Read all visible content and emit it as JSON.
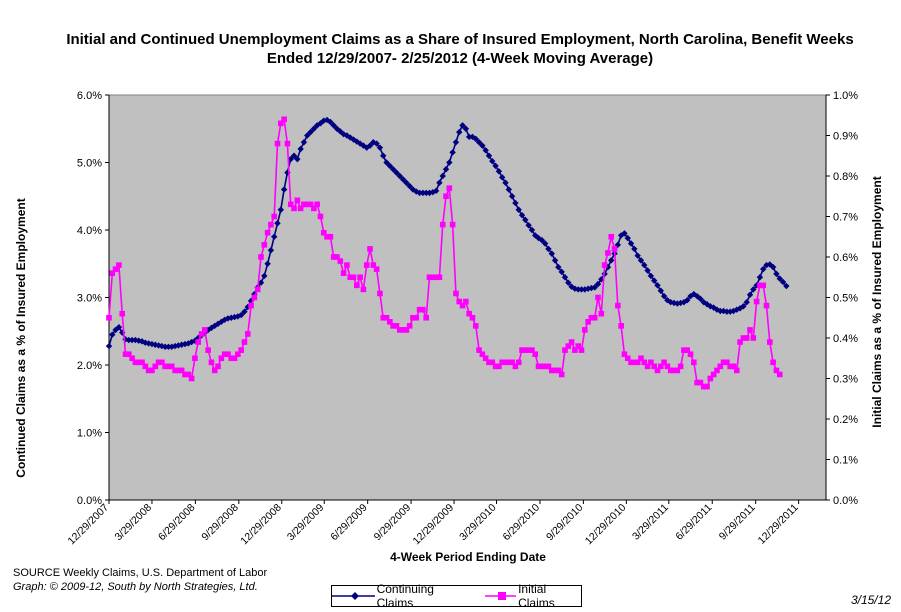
{
  "chart_data": {
    "type": "line",
    "title": "Initial and Continued Unemployment Claims as a Share of Insured Employment, North Carolina, Benefit Weeks Ended 12/29/2007- 2/25/2012 (4-Week Moving Average)",
    "xlabel": "4-Week Period Ending Date",
    "ylabel_left": "Continued Claims as a % of Insured Employment",
    "ylabel_right": "Initial Claims as a % of Insured Employment",
    "ylim_left": [
      0,
      6
    ],
    "ylim_right": [
      0,
      1
    ],
    "y_ticks_left": [
      "0.0%",
      "1.0%",
      "2.0%",
      "3.0%",
      "4.0%",
      "5.0%",
      "6.0%"
    ],
    "y_ticks_right": [
      "0.0%",
      "0.1%",
      "0.2%",
      "0.3%",
      "0.4%",
      "0.5%",
      "0.6%",
      "0.7%",
      "0.8%",
      "0.9%",
      "1.0%"
    ],
    "x_ticks": [
      "12/29/2007",
      "3/29/2008",
      "6/29/2008",
      "9/29/2008",
      "12/29/2008",
      "3/29/2009",
      "6/29/2009",
      "9/29/2009",
      "12/29/2009",
      "3/29/2010",
      "6/29/2010",
      "9/29/2010",
      "12/29/2010",
      "3/29/2011",
      "6/29/2011",
      "9/29/2011",
      "12/29/2011"
    ],
    "x_start": "12/29/2007",
    "x_end": "2/25/2012",
    "grid": false,
    "background": "#C0C0C0",
    "series": [
      {
        "name": "Continuing Claims",
        "axis": "left",
        "color": "#000080",
        "marker": "diamond",
        "values": [
          2.28,
          2.45,
          2.52,
          2.56,
          2.48,
          2.38,
          2.37,
          2.37,
          2.37,
          2.36,
          2.35,
          2.33,
          2.32,
          2.31,
          2.3,
          2.29,
          2.28,
          2.27,
          2.27,
          2.27,
          2.28,
          2.29,
          2.3,
          2.31,
          2.32,
          2.34,
          2.36,
          2.4,
          2.44,
          2.48,
          2.52,
          2.55,
          2.58,
          2.61,
          2.64,
          2.67,
          2.69,
          2.7,
          2.71,
          2.72,
          2.74,
          2.79,
          2.86,
          2.95,
          3.05,
          3.15,
          3.22,
          3.32,
          3.5,
          3.7,
          3.9,
          4.1,
          4.3,
          4.6,
          4.85,
          5.05,
          5.1,
          5.05,
          5.2,
          5.3,
          5.4,
          5.45,
          5.5,
          5.55,
          5.58,
          5.62,
          5.63,
          5.6,
          5.55,
          5.5,
          5.46,
          5.42,
          5.4,
          5.37,
          5.34,
          5.31,
          5.28,
          5.25,
          5.22,
          5.25,
          5.3,
          5.28,
          5.22,
          5.1,
          5.0,
          4.95,
          4.9,
          4.85,
          4.8,
          4.75,
          4.7,
          4.65,
          4.6,
          4.57,
          4.55,
          4.55,
          4.55,
          4.55,
          4.56,
          4.58,
          4.7,
          4.8,
          4.9,
          5.0,
          5.15,
          5.3,
          5.45,
          5.55,
          5.5,
          5.38,
          5.38,
          5.35,
          5.3,
          5.25,
          5.18,
          5.1,
          5.02,
          4.95,
          4.87,
          4.78,
          4.7,
          4.6,
          4.5,
          4.4,
          4.3,
          4.22,
          4.15,
          4.07,
          4.0,
          3.92,
          3.88,
          3.85,
          3.8,
          3.72,
          3.65,
          3.55,
          3.45,
          3.38,
          3.3,
          3.22,
          3.16,
          3.13,
          3.12,
          3.12,
          3.12,
          3.13,
          3.14,
          3.15,
          3.2,
          3.27,
          3.35,
          3.45,
          3.55,
          3.65,
          3.78,
          3.92,
          3.95,
          3.88,
          3.8,
          3.72,
          3.62,
          3.55,
          3.48,
          3.4,
          3.32,
          3.25,
          3.18,
          3.1,
          3.02,
          2.96,
          2.93,
          2.92,
          2.91,
          2.92,
          2.93,
          2.96,
          3.02,
          3.05,
          3.02,
          2.98,
          2.93,
          2.9,
          2.87,
          2.85,
          2.82,
          2.8,
          2.8,
          2.79,
          2.79,
          2.8,
          2.82,
          2.84,
          2.87,
          2.93,
          3.04,
          3.12,
          3.18,
          3.3,
          3.42,
          3.48,
          3.49,
          3.45,
          3.35,
          3.28,
          3.23,
          3.17
        ]
      },
      {
        "name": "Initial Claims",
        "axis": "right",
        "color": "#FF00FF",
        "marker": "square",
        "values": [
          0.45,
          0.56,
          0.57,
          0.58,
          0.46,
          0.36,
          0.36,
          0.35,
          0.34,
          0.34,
          0.34,
          0.33,
          0.32,
          0.32,
          0.33,
          0.34,
          0.34,
          0.33,
          0.33,
          0.33,
          0.32,
          0.32,
          0.32,
          0.31,
          0.31,
          0.3,
          0.35,
          0.39,
          0.41,
          0.42,
          0.37,
          0.34,
          0.32,
          0.33,
          0.35,
          0.36,
          0.36,
          0.35,
          0.35,
          0.36,
          0.37,
          0.39,
          0.41,
          0.48,
          0.5,
          0.52,
          0.6,
          0.63,
          0.66,
          0.68,
          0.7,
          0.88,
          0.93,
          0.94,
          0.88,
          0.73,
          0.72,
          0.74,
          0.72,
          0.73,
          0.73,
          0.73,
          0.72,
          0.73,
          0.7,
          0.66,
          0.65,
          0.65,
          0.6,
          0.6,
          0.59,
          0.56,
          0.58,
          0.55,
          0.55,
          0.53,
          0.55,
          0.52,
          0.58,
          0.62,
          0.58,
          0.57,
          0.51,
          0.45,
          0.45,
          0.44,
          0.43,
          0.43,
          0.42,
          0.42,
          0.42,
          0.43,
          0.45,
          0.45,
          0.47,
          0.47,
          0.45,
          0.55,
          0.55,
          0.55,
          0.55,
          0.68,
          0.75,
          0.77,
          0.68,
          0.51,
          0.49,
          0.48,
          0.49,
          0.46,
          0.45,
          0.43,
          0.37,
          0.36,
          0.35,
          0.34,
          0.34,
          0.33,
          0.33,
          0.34,
          0.34,
          0.34,
          0.34,
          0.33,
          0.34,
          0.37,
          0.37,
          0.37,
          0.37,
          0.36,
          0.33,
          0.33,
          0.33,
          0.33,
          0.32,
          0.32,
          0.32,
          0.31,
          0.37,
          0.38,
          0.39,
          0.37,
          0.38,
          0.37,
          0.42,
          0.44,
          0.45,
          0.45,
          0.5,
          0.46,
          0.58,
          0.61,
          0.65,
          0.62,
          0.48,
          0.43,
          0.36,
          0.35,
          0.34,
          0.34,
          0.34,
          0.35,
          0.34,
          0.33,
          0.34,
          0.33,
          0.32,
          0.33,
          0.34,
          0.33,
          0.32,
          0.32,
          0.32,
          0.33,
          0.37,
          0.37,
          0.36,
          0.34,
          0.29,
          0.29,
          0.28,
          0.28,
          0.3,
          0.31,
          0.32,
          0.33,
          0.34,
          0.34,
          0.33,
          0.33,
          0.32,
          0.39,
          0.4,
          0.4,
          0.42,
          0.4,
          0.49,
          0.53,
          0.53,
          0.48,
          0.39,
          0.34,
          0.32,
          0.31
        ]
      }
    ],
    "legend_position": "bottom"
  },
  "source": {
    "line1": "SOURCE  Weekly Claims, U.S. Department of Labor",
    "line2": "Graph: © 2009-12, South by North Strategies, Ltd."
  },
  "date_stamp": "3/15/12"
}
